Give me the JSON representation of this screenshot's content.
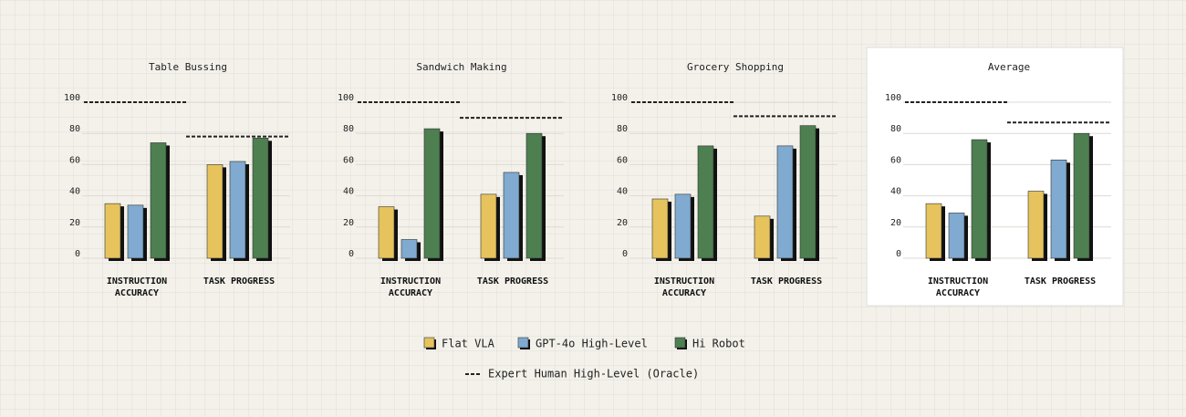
{
  "chart_data": [
    {
      "type": "bar",
      "title": "Table Bussing",
      "categories": [
        "INSTRUCTION ACCURACY",
        "TASK PROGRESS"
      ],
      "series": [
        {
          "name": "Flat VLA",
          "color": "#e6c35c",
          "values": [
            35,
            60
          ]
        },
        {
          "name": "GPT-4o High-Level",
          "color": "#80aad0",
          "values": [
            34,
            62
          ]
        },
        {
          "name": "Hi Robot",
          "color": "#4d7f50",
          "values": [
            74,
            77
          ]
        }
      ],
      "reference": {
        "name": "Expert Human High-Level (Oracle)",
        "values": [
          100,
          78
        ]
      },
      "ylim": [
        0,
        100
      ],
      "yticks": [
        0,
        20,
        40,
        60,
        80,
        100
      ],
      "grid": true
    },
    {
      "type": "bar",
      "title": "Sandwich Making",
      "categories": [
        "INSTRUCTION ACCURACY",
        "TASK PROGRESS"
      ],
      "series": [
        {
          "name": "Flat VLA",
          "color": "#e6c35c",
          "values": [
            33,
            41
          ]
        },
        {
          "name": "GPT-4o High-Level",
          "color": "#80aad0",
          "values": [
            12,
            55
          ]
        },
        {
          "name": "Hi Robot",
          "color": "#4d7f50",
          "values": [
            83,
            80
          ]
        }
      ],
      "reference": {
        "name": "Expert Human High-Level (Oracle)",
        "values": [
          100,
          90
        ]
      },
      "ylim": [
        0,
        100
      ],
      "yticks": [
        0,
        20,
        40,
        60,
        80,
        100
      ],
      "grid": true
    },
    {
      "type": "bar",
      "title": "Grocery Shopping",
      "categories": [
        "INSTRUCTION ACCURACY",
        "TASK PROGRESS"
      ],
      "series": [
        {
          "name": "Flat VLA",
          "color": "#e6c35c",
          "values": [
            38,
            27
          ]
        },
        {
          "name": "GPT-4o High-Level",
          "color": "#80aad0",
          "values": [
            41,
            72
          ]
        },
        {
          "name": "Hi Robot",
          "color": "#4d7f50",
          "values": [
            72,
            85
          ]
        }
      ],
      "reference": {
        "name": "Expert Human High-Level (Oracle)",
        "values": [
          100,
          91
        ]
      },
      "ylim": [
        0,
        100
      ],
      "yticks": [
        0,
        20,
        40,
        60,
        80,
        100
      ],
      "grid": true
    },
    {
      "type": "bar",
      "title": "Average",
      "categories": [
        "INSTRUCTION ACCURACY",
        "TASK PROGRESS"
      ],
      "series": [
        {
          "name": "Flat VLA",
          "color": "#e6c35c",
          "values": [
            35,
            43
          ]
        },
        {
          "name": "GPT-4o High-Level",
          "color": "#80aad0",
          "values": [
            29,
            63
          ]
        },
        {
          "name": "Hi Robot",
          "color": "#4d7f50",
          "values": [
            76,
            80
          ]
        }
      ],
      "reference": {
        "name": "Expert Human High-Level (Oracle)",
        "values": [
          100,
          87
        ]
      },
      "ylim": [
        0,
        100
      ],
      "yticks": [
        0,
        20,
        40,
        60,
        80,
        100
      ],
      "grid": true
    }
  ]
}
